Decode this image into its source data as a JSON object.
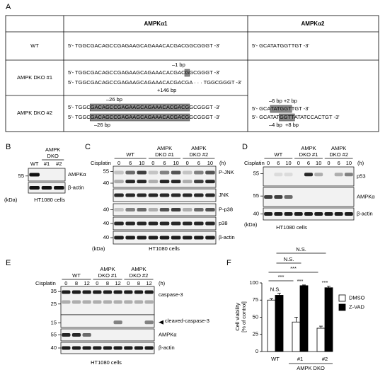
{
  "panel_a": {
    "label": "A",
    "header": [
      "AMPKα1",
      "AMPKα2"
    ],
    "rows": [
      {
        "name": "WT",
        "alpha1": [
          [
            {
              "text": "5'- TGGCGACAGCCGAGAAGCAGAAACACGACGGC"
            },
            {
              "text": "GGG",
              "style": "blue"
            },
            {
              "text": "T -3'"
            }
          ]
        ],
        "alpha2": [
          [
            {
              "text": "5'- GCATA"
            },
            {
              "text": "TGG",
              "style": "blue"
            },
            {
              "text": "TTGT -3'"
            }
          ]
        ]
      },
      {
        "name": "AMPK DKO #1",
        "alpha1": [
          [
            {
              "text": "–1 bp"
            }
          ],
          [
            {
              "text": "5'- TGGCGACAGCCGAGAAGCAGAAACACGAC"
            },
            {
              "text": "G",
              "style": "box"
            },
            {
              "text": "GC"
            },
            {
              "text": "GGG",
              "style": "blue"
            },
            {
              "text": "T -3'"
            }
          ],
          [
            {
              "text": "5'- TGGCGACAGCCGAGAAGCAGAAACACGACG"
            },
            {
              "text": "A · · ·",
              "style": "red"
            },
            {
              "text": " TGGC"
            },
            {
              "text": "GGG",
              "style": "blue"
            },
            {
              "text": "T -3'"
            }
          ],
          [
            {
              "text": "+146 bp",
              "style": "red"
            }
          ]
        ]
      },
      {
        "name": "AMPK DKO #2",
        "alpha1": [
          [
            {
              "text": "–26 bp"
            }
          ],
          [
            {
              "text": "5'- TGGC"
            },
            {
              "text": "GACAGCCGAGAAGCAGAAACACGACG",
              "style": "box"
            },
            {
              "text": "GC"
            },
            {
              "text": "GGG",
              "style": "blue"
            },
            {
              "text": "T -3'"
            }
          ],
          [
            {
              "text": "5'- TGGC"
            },
            {
              "text": "GACAGCCGAGAAGCAGAAACACGACG",
              "style": "box"
            },
            {
              "text": "GC"
            },
            {
              "text": "GGG",
              "style": "blue"
            },
            {
              "text": "T -3'"
            }
          ],
          [
            {
              "text": "–26 bp"
            }
          ]
        ]
      }
    ],
    "dko_alpha2": [
      [
        {
          "text": "–6 bp "
        },
        {
          "text": "+2 bp",
          "style": "red"
        }
      ],
      [
        {
          "text": "5'- GCA"
        },
        {
          "text": "TATGGT",
          "style": "box"
        },
        {
          "text": "TGT -3'"
        }
      ],
      [
        {
          "text": "5'- GCATAT"
        },
        {
          "text": "GGTT",
          "style": "box"
        },
        {
          "text": "ATATCCAC",
          "style": "red"
        },
        {
          "text": "TGT -3'"
        }
      ],
      [
        {
          "text": "–4 bp  "
        },
        {
          "text": "+8 bp",
          "style": "red"
        }
      ]
    ]
  },
  "panel_b": {
    "label": "B",
    "groups": [
      [
        "AMPK",
        "DKO"
      ]
    ],
    "lanes": [
      "WT",
      "#1",
      "#2"
    ],
    "blots": [
      {
        "name": "AMPKα",
        "markers": [
          55
        ]
      },
      {
        "name": "β-actin",
        "markers": []
      }
    ],
    "unit_kda": "(kDa)",
    "cells": "HT1080 cells"
  },
  "panel_c": {
    "label": "C",
    "treatment": "Cisplatin",
    "time_unit": "(h)",
    "groups": [
      [
        "WT"
      ],
      [
        "AMPK",
        "DKO #1"
      ],
      [
        "AMPK",
        "DKO #2"
      ]
    ],
    "lanes": [
      "0",
      "6",
      "10"
    ],
    "blots": [
      {
        "name": "P-JNK",
        "markers": [
          55,
          40
        ]
      },
      {
        "name": "JNK",
        "markers": []
      },
      {
        "name": "P-p38",
        "markers": [
          40
        ]
      },
      {
        "name": "p38",
        "markers": [
          40
        ]
      },
      {
        "name": "β-actin",
        "markers": [
          40
        ]
      }
    ],
    "unit_kda": "(kDa)",
    "cells": "HT1080 cells"
  },
  "panel_d": {
    "label": "D",
    "treatment": "Cisplatin",
    "time_unit": "(h)",
    "groups": [
      [
        "WT"
      ],
      [
        "AMPK",
        "DKO #1"
      ],
      [
        "AMPK",
        "DKO #2"
      ]
    ],
    "lanes": [
      "0",
      "6",
      "10"
    ],
    "blots": [
      {
        "name": "p53",
        "markers": [
          55
        ]
      },
      {
        "name": "AMPKα",
        "markers": [
          55
        ]
      },
      {
        "name": "β-actin",
        "markers": [
          40
        ]
      }
    ],
    "unit_kda": "(kDa)",
    "cells": "HT1080 cells"
  },
  "panel_e": {
    "label": "E",
    "treatment": "Cisplatin",
    "time_unit": "(h)",
    "groups": [
      [
        "WT"
      ],
      [
        "AMPK",
        "DKO #1"
      ],
      [
        "AMPK",
        "DKO #2"
      ]
    ],
    "lanes": [
      "0",
      "8",
      "12"
    ],
    "blots": [
      {
        "name": "caspase-3",
        "markers": [
          35,
          25
        ]
      },
      {
        "name": "cleaved-caspase-3",
        "markers": [
          15
        ]
      },
      {
        "name": "AMPKα",
        "markers": [
          55
        ]
      },
      {
        "name": "β-actin",
        "markers": [
          40
        ]
      }
    ],
    "cells": "HT1080 cells"
  },
  "panel_f": {
    "label": "F",
    "type": "bar",
    "ylabel": [
      "Cell viability",
      "[% of control]"
    ],
    "categories": [
      "WT",
      "#1",
      "#2"
    ],
    "group_label": "AMPK DKO",
    "series": [
      {
        "name": "DMSO",
        "color": "#ffffff",
        "values": [
          75,
          43,
          34
        ],
        "errors": [
          2,
          7,
          3
        ]
      },
      {
        "name": "Z-VAD",
        "color": "#000000",
        "values": [
          82,
          96,
          93
        ],
        "errors": [
          3,
          1,
          2
        ]
      }
    ],
    "ylim": [
      0,
      100
    ],
    "yticks": [
      0,
      25,
      50,
      75,
      100
    ],
    "annotations": [
      "N.S.",
      "***",
      "***"
    ],
    "comparisons": [
      "N.S.",
      "N.S.",
      "***",
      "***"
    ]
  }
}
